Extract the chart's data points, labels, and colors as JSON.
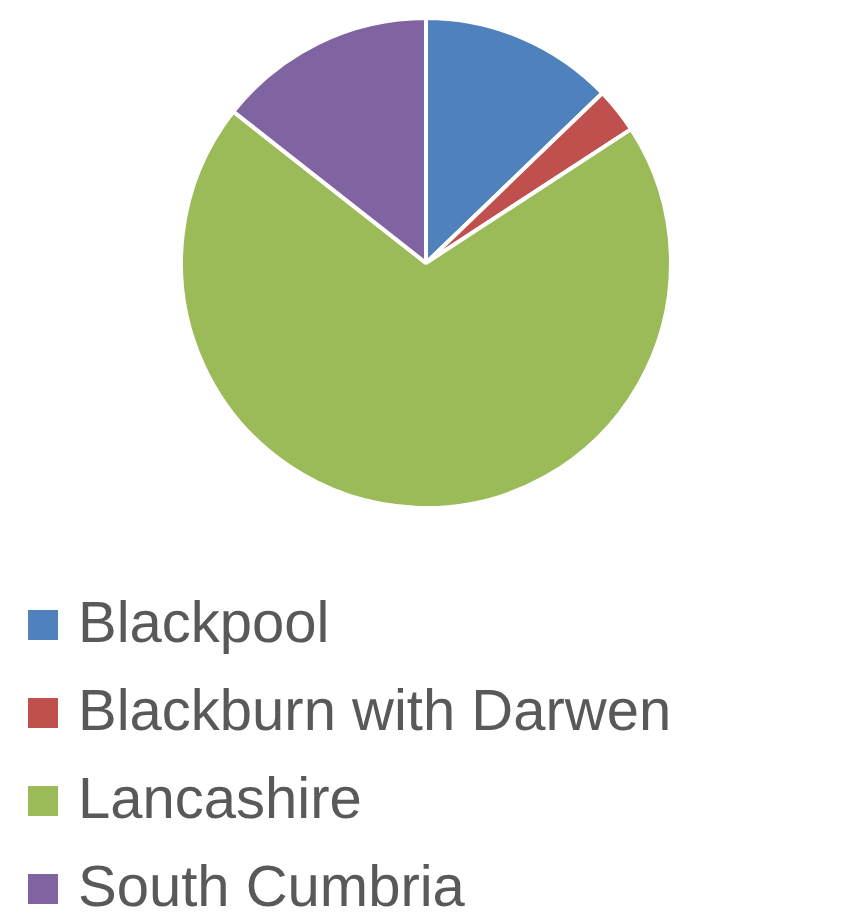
{
  "chart_data": {
    "type": "pie",
    "categories": [
      "Blackpool",
      "Blackburn with Darwen",
      "Lancashire",
      "South Cumbria"
    ],
    "values": [
      12.8,
      3.0,
      69.8,
      14.4
    ],
    "colors": [
      "#4f81bd",
      "#c0504d",
      "#9bbb59",
      "#8064a2"
    ],
    "legend": "bottom"
  }
}
